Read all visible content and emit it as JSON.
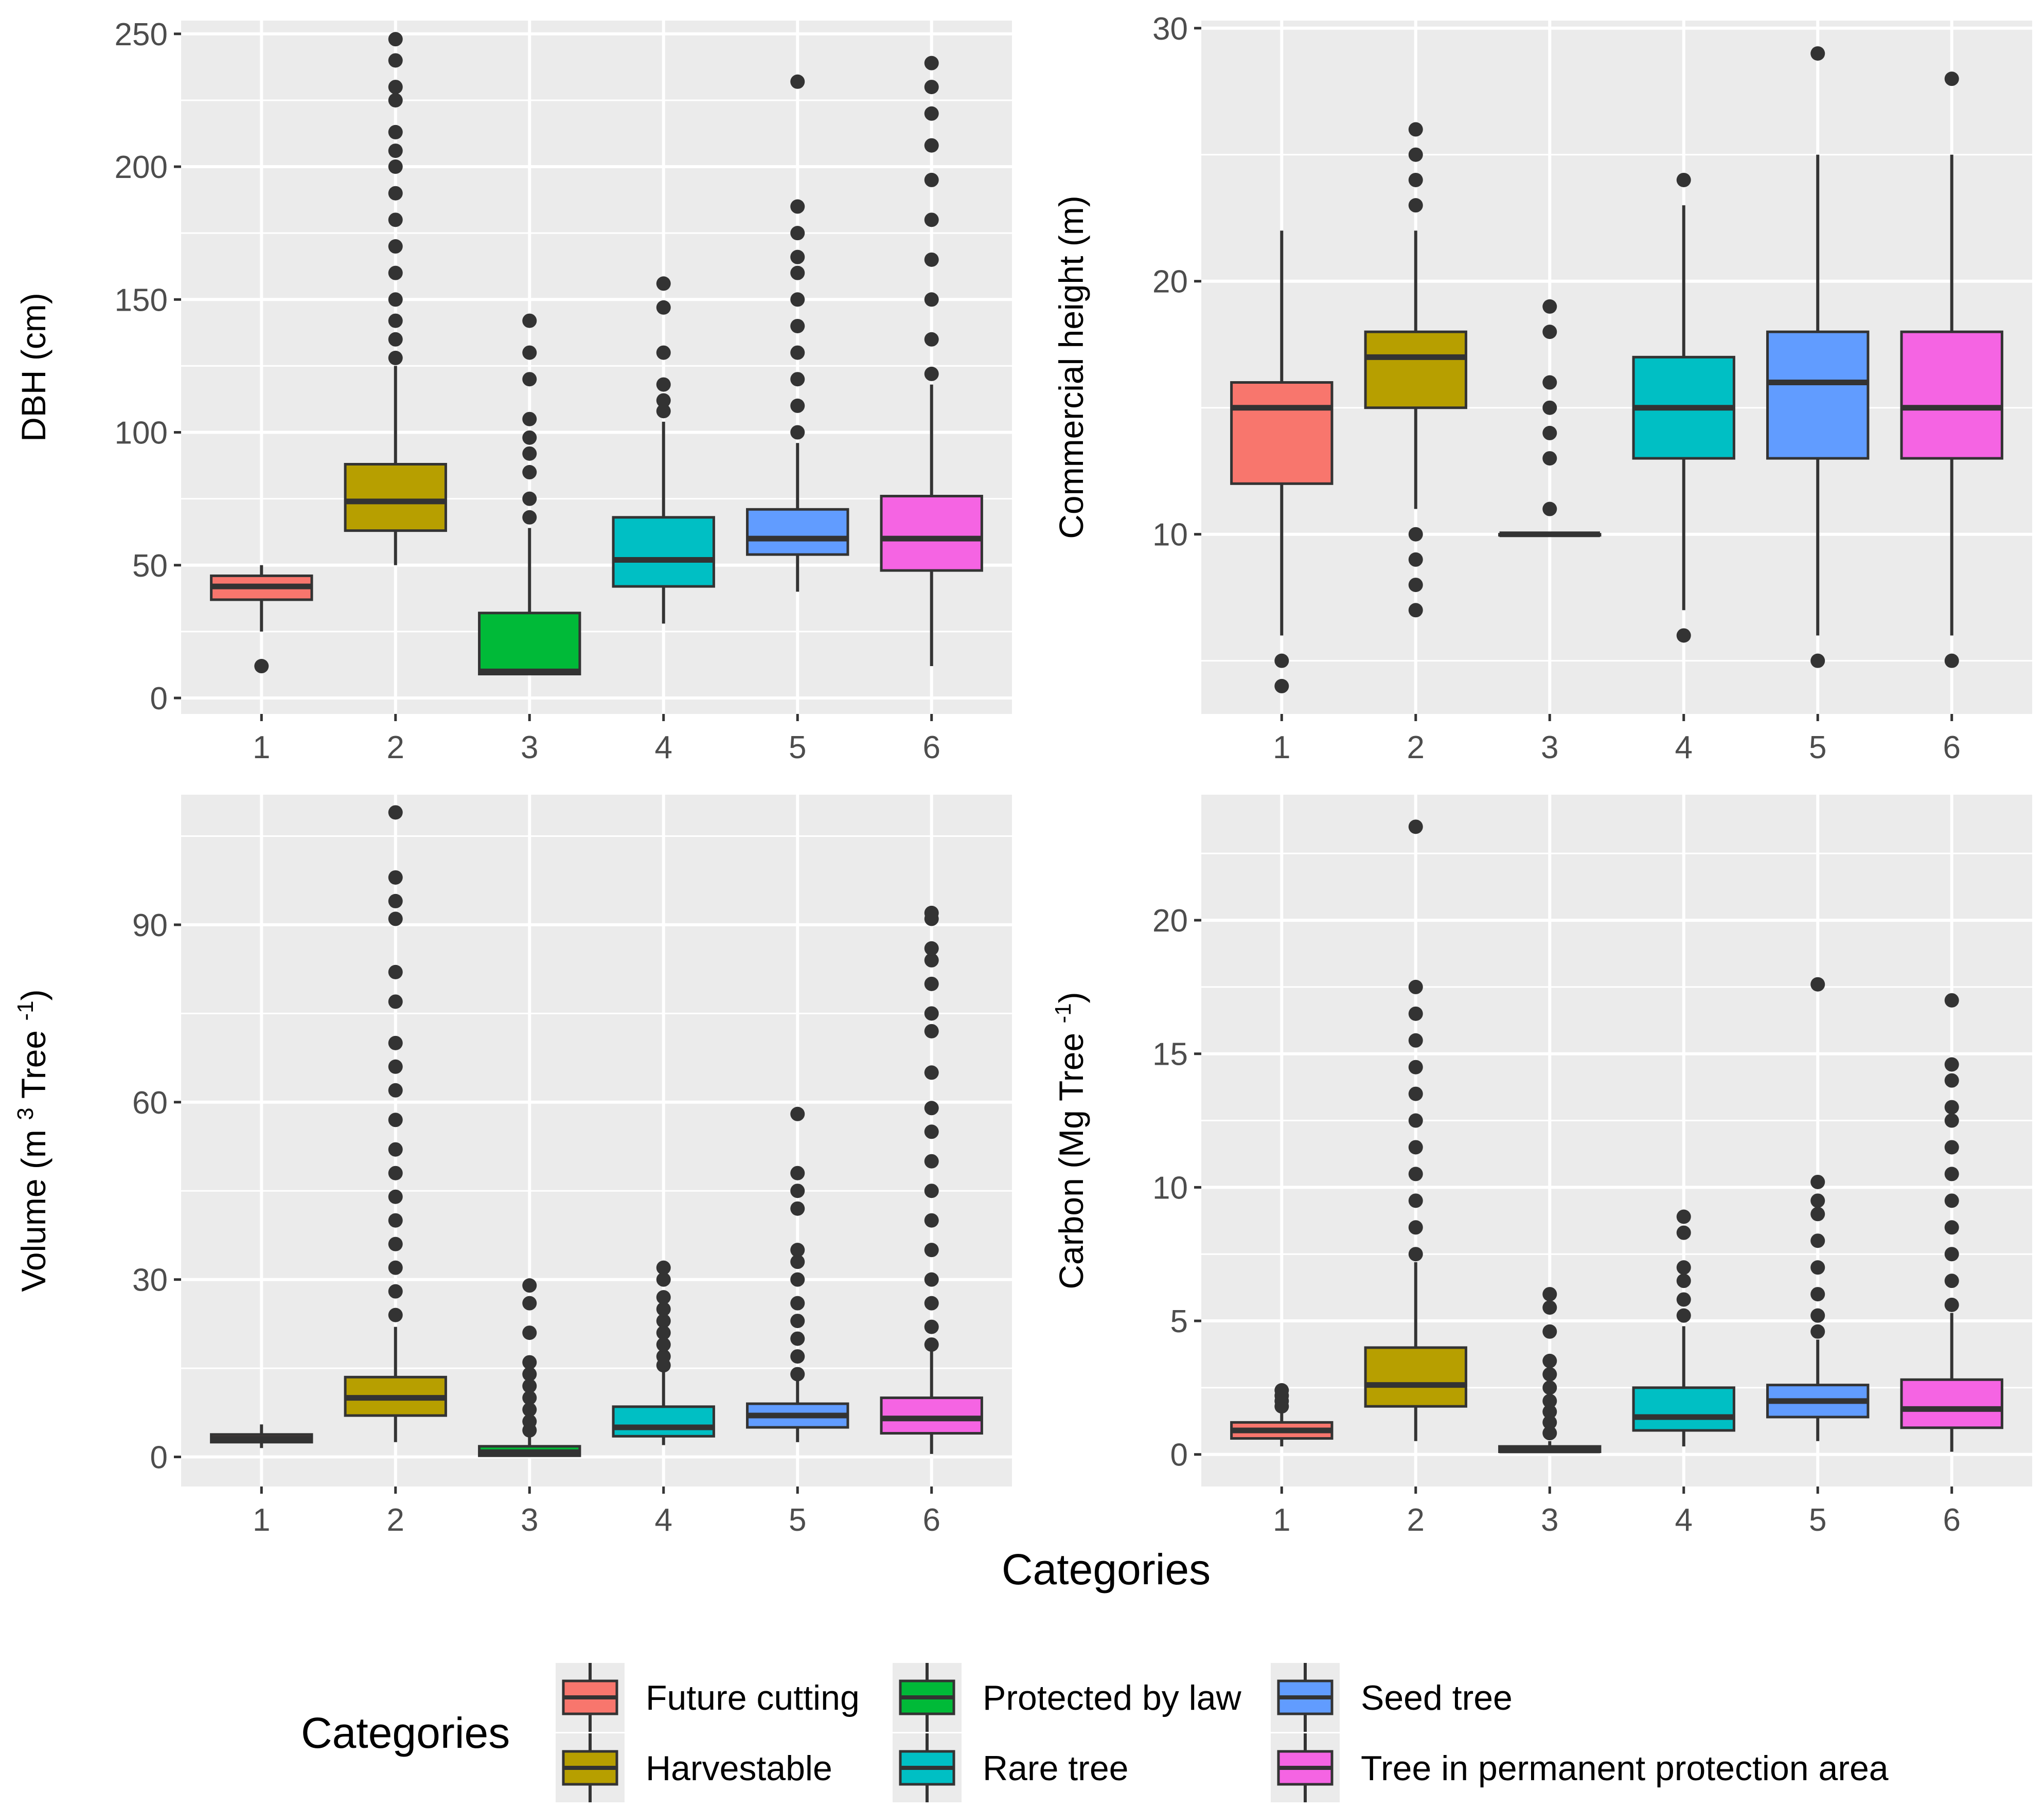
{
  "chart_data": [
    {
      "type": "boxplot",
      "ylabel": "DBH (cm)",
      "ylim": [
        -6,
        255
      ],
      "yticks": [
        0,
        50,
        100,
        150,
        200,
        250
      ],
      "categories": [
        "1",
        "2",
        "3",
        "4",
        "5",
        "6"
      ],
      "boxes": [
        {
          "category": "1",
          "min": 25,
          "q1": 37,
          "median": 42,
          "q3": 46,
          "max": 50,
          "outliers": [
            12
          ]
        },
        {
          "category": "2",
          "min": 50,
          "q1": 63,
          "median": 74,
          "q3": 88,
          "max": 125,
          "outliers": [
            128,
            135,
            142,
            150,
            160,
            170,
            180,
            190,
            200,
            206,
            213,
            225,
            230,
            240,
            248
          ]
        },
        {
          "category": "3",
          "min": 9,
          "q1": 9,
          "median": 10,
          "q3": 32,
          "max": 64,
          "outliers": [
            68,
            75,
            85,
            92,
            98,
            105,
            120,
            130,
            142
          ]
        },
        {
          "category": "4",
          "min": 28,
          "q1": 42,
          "median": 52,
          "q3": 68,
          "max": 104,
          "outliers": [
            108,
            112,
            118,
            130,
            147,
            156
          ]
        },
        {
          "category": "5",
          "min": 40,
          "q1": 54,
          "median": 60,
          "q3": 71,
          "max": 96,
          "outliers": [
            100,
            110,
            120,
            130,
            140,
            150,
            160,
            166,
            175,
            185,
            232
          ]
        },
        {
          "category": "6",
          "min": 12,
          "q1": 48,
          "median": 60,
          "q3": 76,
          "max": 118,
          "outliers": [
            122,
            135,
            150,
            165,
            180,
            195,
            208,
            220,
            230,
            239
          ]
        }
      ]
    },
    {
      "type": "boxplot",
      "ylabel": "Commercial height (m)",
      "ylim": [
        2.9,
        30.3
      ],
      "yticks": [
        10,
        20,
        30
      ],
      "categories": [
        "1",
        "2",
        "3",
        "4",
        "5",
        "6"
      ],
      "boxes": [
        {
          "category": "1",
          "min": 6,
          "q1": 12,
          "median": 15,
          "q3": 16,
          "max": 22,
          "outliers": [
            5,
            4
          ]
        },
        {
          "category": "2",
          "min": 11,
          "q1": 15,
          "median": 17,
          "q3": 18,
          "max": 22,
          "outliers": [
            10,
            9,
            8,
            7,
            23,
            24,
            25,
            26
          ]
        },
        {
          "category": "3",
          "min": 10,
          "q1": 10,
          "median": 10,
          "q3": 10,
          "max": 10,
          "outliers": [
            11,
            13,
            14,
            15,
            16,
            18,
            19
          ]
        },
        {
          "category": "4",
          "min": 7,
          "q1": 13,
          "median": 15,
          "q3": 17,
          "max": 23,
          "outliers": [
            6,
            24
          ]
        },
        {
          "category": "5",
          "min": 6,
          "q1": 13,
          "median": 16,
          "q3": 18,
          "max": 25,
          "outliers": [
            5,
            29
          ]
        },
        {
          "category": "6",
          "min": 6,
          "q1": 13,
          "median": 15,
          "q3": 18,
          "max": 25,
          "outliers": [
            5,
            28
          ]
        }
      ]
    },
    {
      "type": "boxplot",
      "ylabel": "Volume (m",
      "ylabel_sup1": "3",
      "ylabel_mid": " Tree",
      "ylabel_sup2": "-1",
      "ylabel_end": ")",
      "ylim": [
        -5,
        112
      ],
      "yticks": [
        0,
        30,
        60,
        90
      ],
      "categories": [
        "1",
        "2",
        "3",
        "4",
        "5",
        "6"
      ],
      "boxes": [
        {
          "category": "1",
          "min": 1.5,
          "q1": 2.5,
          "median": 3.1,
          "q3": 3.8,
          "max": 5.5,
          "outliers": []
        },
        {
          "category": "2",
          "min": 2.5,
          "q1": 7,
          "median": 10,
          "q3": 13.5,
          "max": 22,
          "outliers": [
            24,
            28,
            32,
            36,
            40,
            44,
            48,
            52,
            57,
            62,
            66,
            70,
            77,
            82,
            91,
            94,
            98,
            109
          ]
        },
        {
          "category": "3",
          "min": 0,
          "q1": 0.2,
          "median": 0.8,
          "q3": 1.8,
          "max": 3.5,
          "outliers": [
            4.5,
            6,
            8,
            10,
            12,
            14,
            16,
            21,
            26,
            29
          ]
        },
        {
          "category": "4",
          "min": 2,
          "q1": 3.5,
          "median": 5,
          "q3": 8.5,
          "max": 14.5,
          "outliers": [
            15.5,
            17,
            19,
            21,
            23,
            25,
            27,
            30,
            32
          ]
        },
        {
          "category": "5",
          "min": 2.5,
          "q1": 5,
          "median": 7,
          "q3": 9,
          "max": 13,
          "outliers": [
            14,
            17,
            20,
            23,
            26,
            30,
            33,
            35,
            42,
            45,
            48,
            58
          ]
        },
        {
          "category": "6",
          "min": 0.5,
          "q1": 4,
          "median": 6.5,
          "q3": 10,
          "max": 18,
          "outliers": [
            19,
            22,
            26,
            30,
            35,
            40,
            45,
            50,
            55,
            59,
            65,
            72,
            75,
            80,
            84,
            86,
            91,
            92
          ]
        }
      ]
    },
    {
      "type": "boxplot",
      "ylabel": "Carbon (Mg Tree",
      "ylabel_sup": "-1",
      "ylabel_end": ")",
      "ylim": [
        -1.2,
        24.7
      ],
      "yticks": [
        0,
        5,
        10,
        15,
        20
      ],
      "categories": [
        "1",
        "2",
        "3",
        "4",
        "5",
        "6"
      ],
      "boxes": [
        {
          "category": "1",
          "min": 0.3,
          "q1": 0.6,
          "median": 0.9,
          "q3": 1.2,
          "max": 1.6,
          "outliers": [
            1.8,
            2.0,
            2.2,
            2.4
          ]
        },
        {
          "category": "2",
          "min": 0.5,
          "q1": 1.8,
          "median": 2.6,
          "q3": 4.0,
          "max": 7.2,
          "outliers": [
            7.5,
            8.5,
            9.5,
            10.5,
            11.5,
            12.5,
            13.5,
            14.5,
            15.5,
            16.5,
            17.5,
            23.5
          ]
        },
        {
          "category": "3",
          "min": 0.1,
          "q1": 0.1,
          "median": 0.15,
          "q3": 0.3,
          "max": 0.5,
          "outliers": [
            0.8,
            1.2,
            1.6,
            2.0,
            2.5,
            3.0,
            3.5,
            4.6,
            5.5,
            6.0
          ]
        },
        {
          "category": "4",
          "min": 0.3,
          "q1": 0.9,
          "median": 1.4,
          "q3": 2.5,
          "max": 4.8,
          "outliers": [
            5.2,
            5.8,
            6.5,
            7.0,
            8.3,
            8.9
          ]
        },
        {
          "category": "5",
          "min": 0.5,
          "q1": 1.4,
          "median": 2.0,
          "q3": 2.6,
          "max": 4.3,
          "outliers": [
            4.6,
            5.2,
            6.0,
            7.0,
            8.0,
            9.0,
            9.5,
            10.2,
            17.6
          ]
        },
        {
          "category": "6",
          "min": 0.1,
          "q1": 1.0,
          "median": 1.7,
          "q3": 2.8,
          "max": 5.3,
          "outliers": [
            5.6,
            6.5,
            7.5,
            8.5,
            9.5,
            10.5,
            11.5,
            12.5,
            13.0,
            14.0,
            14.6,
            17.0
          ]
        }
      ]
    }
  ],
  "xlabel": "Categories",
  "legend": {
    "title": "Categories",
    "items": [
      {
        "label": "Future cutting",
        "color": "#F8766D"
      },
      {
        "label": "Harvestable",
        "color": "#B79F00"
      },
      {
        "label": "Protected by law",
        "color": "#00BA38"
      },
      {
        "label": "Rare tree",
        "color": "#00BFC4"
      },
      {
        "label": "Seed tree",
        "color": "#619CFF"
      },
      {
        "label": "Tree in permanent protection area",
        "color": "#F564E3"
      }
    ]
  },
  "category_colors": [
    "#F8766D",
    "#B79F00",
    "#00BA38",
    "#00BFC4",
    "#619CFF",
    "#F564E3"
  ],
  "styles": {
    "panel_bg": "#EBEBEB",
    "grid": "#FFFFFF",
    "box_line": "#333333",
    "point": "#333333"
  }
}
